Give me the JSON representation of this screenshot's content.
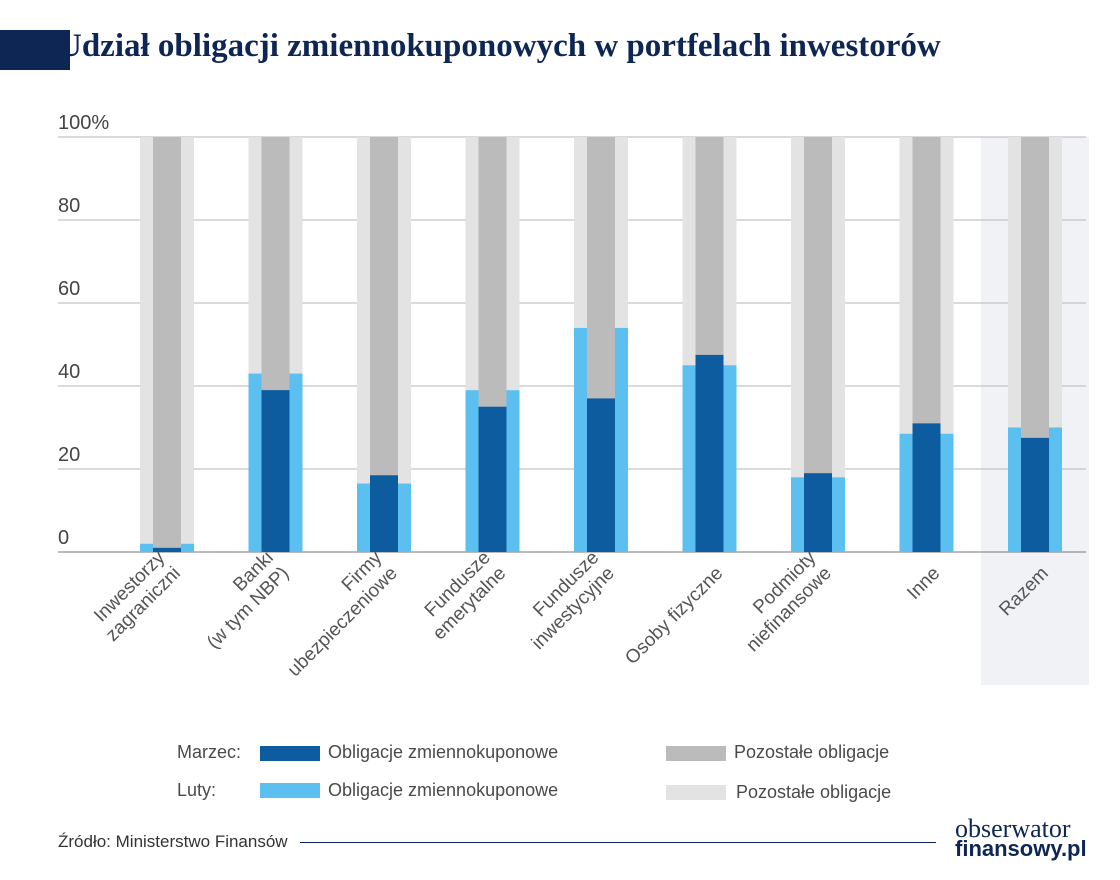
{
  "header": {
    "title": "Udział obligacji zmiennokuponowych w portfelach inwestorów"
  },
  "chart_data": {
    "type": "bar",
    "title": "Udział obligacji zmiennokuponowych w portfelach inwestorów",
    "ylim": [
      0,
      100
    ],
    "yticks": [
      "0",
      "20",
      "40",
      "60",
      "80",
      "100%"
    ],
    "grid": true,
    "categories": [
      "Inwestorzy\nzagraniczni",
      "Banki\n(w tym NBP)",
      "Firmy\nubezpieczeniowe",
      "Fundusze\nemerytalne",
      "Fundusze\ninwestycyjne",
      "Osoby fizyczne",
      "Podmioty\nniefinansowe",
      "Inne",
      "Razem"
    ],
    "series": [
      {
        "name": "Marzec: Obligacje zmiennokuponowe",
        "color": "#0d5ca0",
        "values": [
          1,
          39,
          18.5,
          35,
          37,
          47.5,
          19,
          31,
          27.5
        ]
      },
      {
        "name": "Marzec: Pozostałe obligacje",
        "color": "#bbbbbb",
        "values": [
          99,
          61,
          81.5,
          65,
          63,
          52.5,
          81,
          69,
          72.5
        ]
      },
      {
        "name": "Luty: Obligacje zmiennokuponowe",
        "color": "#5bbfef",
        "values": [
          2,
          43,
          16.5,
          39,
          54,
          45,
          18,
          28.5,
          30
        ]
      },
      {
        "name": "Luty: Pozostałe obligacje",
        "color": "#e3e3e3",
        "values": [
          98,
          57,
          83.5,
          61,
          46,
          55,
          82,
          71.5,
          70
        ]
      }
    ],
    "highlight_category": "Razem"
  },
  "legend": {
    "march_label": "Marzec:",
    "feb_label": "Luty:",
    "floating_label": "Obligacje zmiennokuponowe",
    "other_label": "Pozostałe obligacje",
    "colors": {
      "march_floating": "#0d5ca0",
      "march_other": "#bbbbbb",
      "feb_floating": "#5bbfef",
      "feb_other": "#e3e3e3"
    }
  },
  "footer": {
    "source": "Źródło: Ministerstwo Finansów",
    "brand_line1": "obserwator",
    "brand_line2": "finansowy.pl"
  }
}
